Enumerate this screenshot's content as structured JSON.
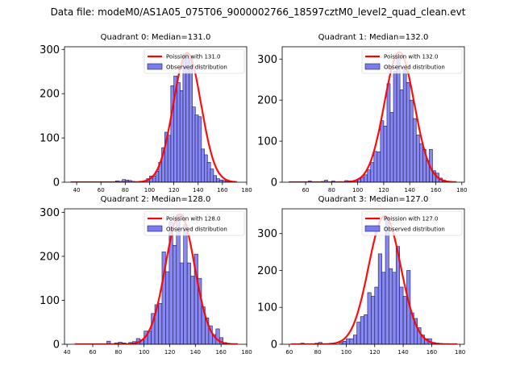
{
  "suptitle": "Data file: modeM0/AS1A05_075T06_9000002766_18597cztM0_level2_quad_clean.evt",
  "colors": {
    "bar_fill": "#7b7bf0",
    "bar_edge": "#1a1a5a",
    "poisson_line": "#ff0000"
  },
  "chart_data": [
    {
      "type": "bar",
      "title": "Quadrant 0: Median=131.0",
      "xlim": [
        30,
        180
      ],
      "ylim": [
        0,
        306
      ],
      "xticks": [
        40,
        60,
        80,
        100,
        120,
        140,
        160,
        180
      ],
      "yticks": [
        0,
        100,
        200,
        300
      ],
      "legend": {
        "position": "top-right",
        "line_label": "Poission with 131.0",
        "bar_label": "Observed distribution"
      },
      "bin_width": 2.75,
      "histogram": {
        "bin_starts": [
          72,
          75,
          77.5,
          80,
          82.5,
          85,
          97.5,
          100,
          102.5,
          105,
          107.5,
          110,
          112.5,
          115,
          117.5,
          120,
          122.5,
          125,
          127.5,
          130,
          132.5,
          135,
          137.5,
          140,
          142.5,
          145,
          147.5,
          150,
          152.5,
          155,
          157.5,
          160,
          162.5,
          165
        ],
        "counts": [
          3,
          2,
          6,
          5,
          4,
          2,
          8,
          14,
          14,
          25,
          45,
          78,
          113,
          106,
          218,
          240,
          225,
          207,
          290,
          290,
          280,
          170,
          152,
          148,
          75,
          62,
          45,
          30,
          15,
          8,
          5,
          4,
          2,
          1
        ]
      },
      "poisson": {
        "mean": 131.0,
        "peak": 292,
        "sigma": 11.4,
        "x_range": [
          35,
          172
        ]
      }
    },
    {
      "type": "bar",
      "title": "Quadrant 1: Median=132.0",
      "xlim": [
        42,
        182
      ],
      "ylim": [
        0,
        330
      ],
      "xticks": [
        60,
        80,
        100,
        120,
        140,
        160,
        180
      ],
      "yticks": [
        0,
        100,
        200,
        300
      ],
      "legend": {
        "position": "top-right",
        "line_label": "Poission with 132.0",
        "bar_label": "Observed distribution"
      },
      "bin_width": 2.5,
      "histogram": {
        "bin_starts": [
          62,
          72,
          74.5,
          80,
          90,
          92.5,
          97.5,
          100,
          102.5,
          105,
          107.5,
          110,
          112.5,
          115,
          117.5,
          120,
          122.5,
          125,
          127.5,
          130,
          132.5,
          135,
          137.5,
          140,
          142.5,
          145,
          147.5,
          150,
          152.5,
          155,
          157.5,
          160,
          162.5,
          165,
          167.5
        ],
        "counts": [
          3,
          2,
          5,
          3,
          4,
          3,
          4,
          8,
          12,
          18,
          30,
          48,
          75,
          74,
          150,
          137,
          240,
          170,
          270,
          310,
          225,
          275,
          243,
          200,
          155,
          115,
          94,
          80,
          53,
          80,
          28,
          22,
          10,
          5,
          2
        ]
      },
      "poisson": {
        "mean": 132.0,
        "peak": 317,
        "sigma": 11.5,
        "x_range": [
          47,
          176
        ]
      }
    },
    {
      "type": "bar",
      "title": "Quadrant 2: Median=128.0",
      "xlim": [
        38,
        180
      ],
      "ylim": [
        0,
        308
      ],
      "xticks": [
        40,
        60,
        80,
        100,
        120,
        140,
        160,
        180
      ],
      "yticks": [
        0,
        100,
        200,
        300
      ],
      "legend": {
        "position": "top-right",
        "line_label": "Poission with 128.0",
        "bar_label": "Observed distribution"
      },
      "bin_width": 2.8,
      "histogram": {
        "bin_starts": [
          71,
          77,
          80,
          83,
          88,
          91,
          94,
          97,
          100,
          102.8,
          105.6,
          108.4,
          111.2,
          114,
          116.8,
          119.6,
          122.4,
          125.2,
          128,
          130.8,
          133.6,
          136.4,
          139.2,
          142,
          144.8,
          147.6,
          150.4,
          153.2,
          156,
          158.8,
          161.6,
          164.4
        ],
        "counts": [
          7,
          3,
          5,
          3,
          4,
          6,
          13,
          10,
          30,
          30,
          70,
          90,
          93,
          210,
          165,
          278,
          225,
          295,
          185,
          272,
          185,
          155,
          205,
          150,
          85,
          60,
          42,
          22,
          35,
          15,
          4,
          2
        ]
      },
      "poisson": {
        "mean": 128.0,
        "peak": 296,
        "sigma": 11.3,
        "x_range": [
          46,
          173
        ]
      }
    },
    {
      "type": "bar",
      "title": "Quadrant 3: Median=127.0",
      "xlim": [
        55,
        183
      ],
      "ylim": [
        0,
        367
      ],
      "xticks": [
        60,
        80,
        100,
        120,
        140,
        160,
        180
      ],
      "yticks": [
        0,
        100,
        200,
        300
      ],
      "legend": {
        "position": "top-right",
        "line_label": "Poission with 127.0",
        "bar_label": "Observed distribution"
      },
      "bin_width": 2.5,
      "histogram": {
        "bin_starts": [
          68,
          78,
          80.5,
          95,
          97.5,
          100,
          102.5,
          105,
          107.5,
          110,
          112.5,
          115,
          117.5,
          120,
          122.5,
          125,
          127.5,
          130,
          132.5,
          135,
          137.5,
          140,
          142.5,
          145,
          147.5,
          150,
          152.5,
          155,
          157.5,
          160,
          162.5,
          165
        ],
        "counts": [
          3,
          3,
          5,
          5,
          8,
          15,
          15,
          25,
          60,
          75,
          80,
          140,
          130,
          155,
          245,
          195,
          345,
          205,
          195,
          265,
          155,
          130,
          200,
          85,
          70,
          45,
          25,
          15,
          15,
          5,
          3,
          2
        ]
      },
      "poisson": {
        "mean": 127.0,
        "peak": 348,
        "sigma": 11.3,
        "x_range": [
          61,
          178
        ]
      }
    }
  ]
}
